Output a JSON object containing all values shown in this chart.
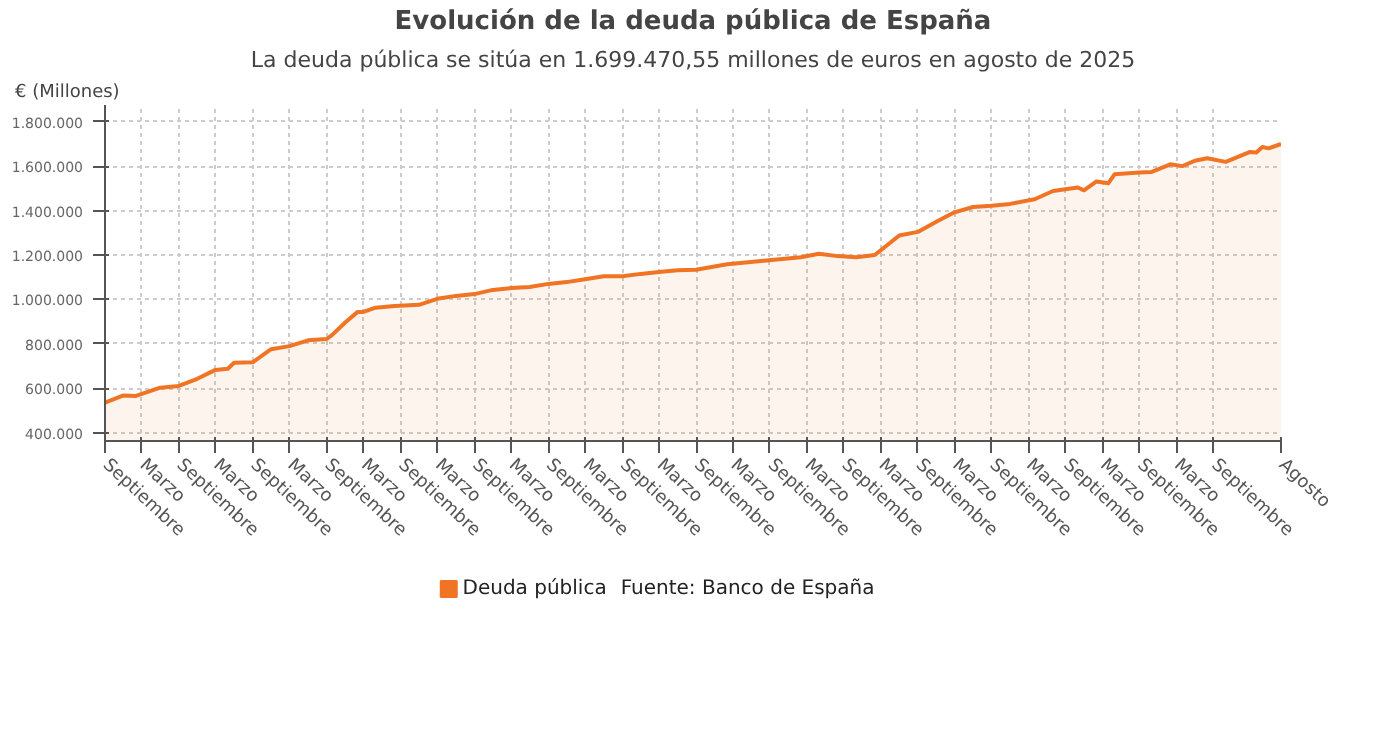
{
  "chart_data": {
    "type": "area",
    "title": "Evolución de la deuda pública de España",
    "subtitle": "La deuda pública se sitúa en 1.699.470,55 millones de euros en agosto de 2025",
    "ylabel": "€ (Millones)",
    "annotations": [
      "Fuente: Banco de España"
    ],
    "x": [
      "2009-09",
      "2009-12",
      "2010-02",
      "2010-06",
      "2010-09",
      "2010-12",
      "2011-03",
      "2011-05",
      "2011-06",
      "2011-09",
      "2011-12",
      "2012-03",
      "2012-06",
      "2012-09",
      "2012-10",
      "2012-12",
      "2013-02",
      "2013-03",
      "2013-05",
      "2013-08",
      "2013-12",
      "2014-03",
      "2014-06",
      "2014-09",
      "2014-12",
      "2015-03",
      "2015-06",
      "2015-09",
      "2015-12",
      "2016-03",
      "2016-06",
      "2016-09",
      "2016-12",
      "2017-03",
      "2017-06",
      "2017-09",
      "2018-02",
      "2018-08",
      "2019-02",
      "2019-05",
      "2019-08",
      "2019-11",
      "2020-02",
      "2020-06",
      "2020-09",
      "2020-12",
      "2021-03",
      "2021-06",
      "2021-09",
      "2021-12",
      "2022-04",
      "2022-07",
      "2022-11",
      "2022-12",
      "2023-02",
      "2023-04",
      "2023-05",
      "2023-09",
      "2023-11",
      "2024-02",
      "2024-04",
      "2024-06",
      "2024-08",
      "2024-11",
      "2025-03",
      "2025-04",
      "2025-05",
      "2025-06",
      "2025-08"
    ],
    "series": [
      {
        "name": "Deuda pública",
        "color": "#f07424",
        "values": [
          536000,
          568000,
          566000,
          603000,
          611000,
          643000,
          683000,
          688000,
          715000,
          717000,
          776000,
          790000,
          816000,
          822000,
          843000,
          896000,
          944000,
          944000,
          963000,
          971000,
          976000,
          1003000,
          1016000,
          1024000,
          1043000,
          1051000,
          1056000,
          1070000,
          1078000,
          1091000,
          1104000,
          1104000,
          1115000,
          1123000,
          1131000,
          1134000,
          1158000,
          1174000,
          1190000,
          1206000,
          1195000,
          1190000,
          1200000,
          1288000,
          1304000,
          1350000,
          1392000,
          1416000,
          1422000,
          1430000,
          1451000,
          1488000,
          1504000,
          1491000,
          1531000,
          1523000,
          1563000,
          1571000,
          1574000,
          1608000,
          1600000,
          1624000,
          1635000,
          1619000,
          1664000,
          1661000,
          1686000,
          1680000,
          1699470.55
        ]
      }
    ],
    "xlim": [
      "2009-09",
      "2025-08"
    ],
    "xticks": [
      {
        "value": "2009-09",
        "label": "Septiembre"
      },
      {
        "value": "2010-03",
        "label": "Marzo"
      },
      {
        "value": "2010-09",
        "label": "Septiembre"
      },
      {
        "value": "2011-03",
        "label": "Marzo"
      },
      {
        "value": "2011-09",
        "label": "Septiembre"
      },
      {
        "value": "2012-03",
        "label": "Marzo"
      },
      {
        "value": "2012-09",
        "label": "Septiembre"
      },
      {
        "value": "2013-03",
        "label": "Marzo"
      },
      {
        "value": "2013-09",
        "label": "Septiembre"
      },
      {
        "value": "2014-03",
        "label": "Marzo"
      },
      {
        "value": "2014-09",
        "label": "Septiembre"
      },
      {
        "value": "2015-03",
        "label": "Marzo"
      },
      {
        "value": "2015-09",
        "label": "Septiembre"
      },
      {
        "value": "2016-03",
        "label": "Marzo"
      },
      {
        "value": "2016-09",
        "label": "Septiembre"
      },
      {
        "value": "2017-03",
        "label": "Marzo"
      },
      {
        "value": "2017-09",
        "label": "Septiembre"
      },
      {
        "value": "2018-03",
        "label": "Marzo"
      },
      {
        "value": "2018-09",
        "label": "Septiembre"
      },
      {
        "value": "2019-03",
        "label": "Marzo"
      },
      {
        "value": "2019-09",
        "label": "Septiembre"
      },
      {
        "value": "2020-03",
        "label": "Marzo"
      },
      {
        "value": "2020-09",
        "label": "Septiembre"
      },
      {
        "value": "2021-03",
        "label": "Marzo"
      },
      {
        "value": "2021-09",
        "label": "Septiembre"
      },
      {
        "value": "2022-03",
        "label": "Marzo"
      },
      {
        "value": "2022-09",
        "label": "Septiembre"
      },
      {
        "value": "2023-03",
        "label": "Marzo"
      },
      {
        "value": "2023-09",
        "label": "Septiembre"
      },
      {
        "value": "2024-03",
        "label": "Marzo"
      },
      {
        "value": "2024-09",
        "label": "Septiembre"
      },
      {
        "value": "2025-08",
        "label": "Agosto"
      }
    ],
    "ylim": [
      363000,
      1875000
    ],
    "yticks": [
      {
        "value": 400000,
        "label": "400.000"
      },
      {
        "value": 600000,
        "label": "600.000"
      },
      {
        "value": 800000,
        "label": "800.000"
      },
      {
        "value": 1000000,
        "label": "1.000.000"
      },
      {
        "value": 1200000,
        "label": "1.200.000"
      },
      {
        "value": 1400000,
        "label": "1.400.000"
      },
      {
        "value": 1600000,
        "label": "1.600.000"
      },
      {
        "value": 1800000,
        "label": "1.800.000"
      }
    ],
    "grid": true,
    "legend": "bottom"
  }
}
